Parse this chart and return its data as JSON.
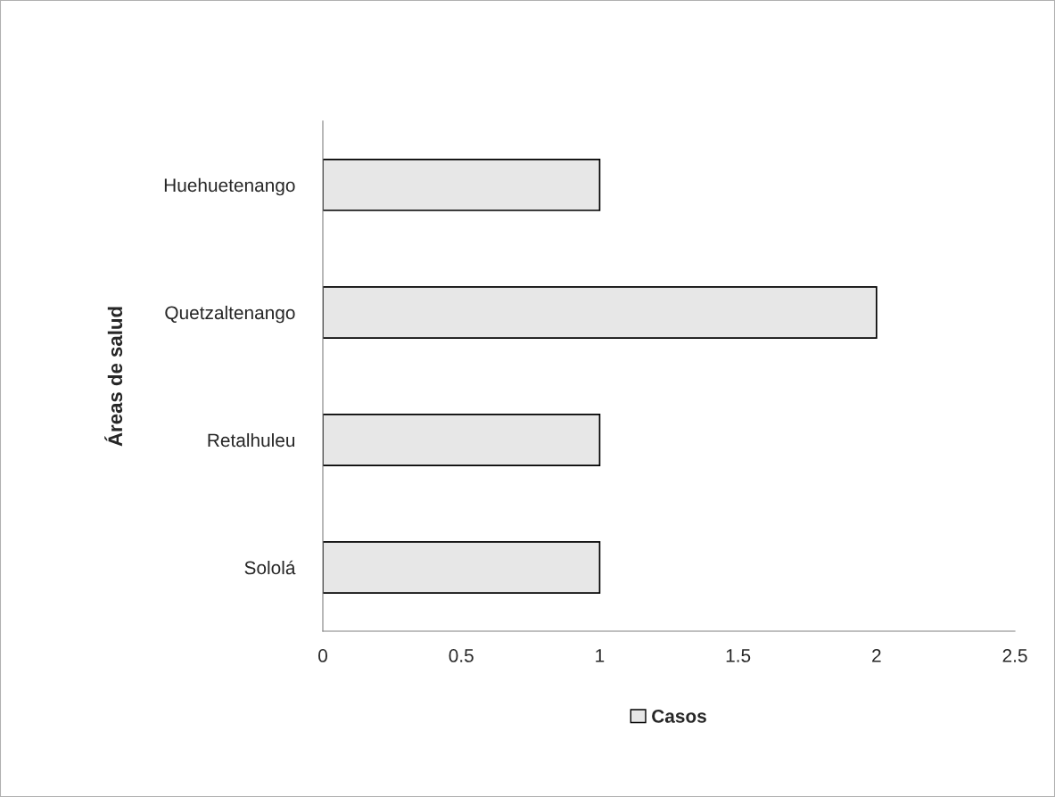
{
  "chart_data": {
    "type": "bar",
    "orientation": "horizontal",
    "ylabel": "Áreas de salud",
    "categories": [
      "Huehuetenango",
      "Quetzaltenango",
      "Retalhuleu",
      "Sololá"
    ],
    "series": [
      {
        "name": "Casos",
        "color": "#e7e7e7",
        "values": [
          1,
          2,
          1,
          1
        ]
      }
    ],
    "xlim": [
      0,
      2.5
    ],
    "xticks": [
      0,
      0.5,
      1,
      1.5,
      2,
      2.5
    ],
    "grid": false,
    "legend": "bottom"
  }
}
